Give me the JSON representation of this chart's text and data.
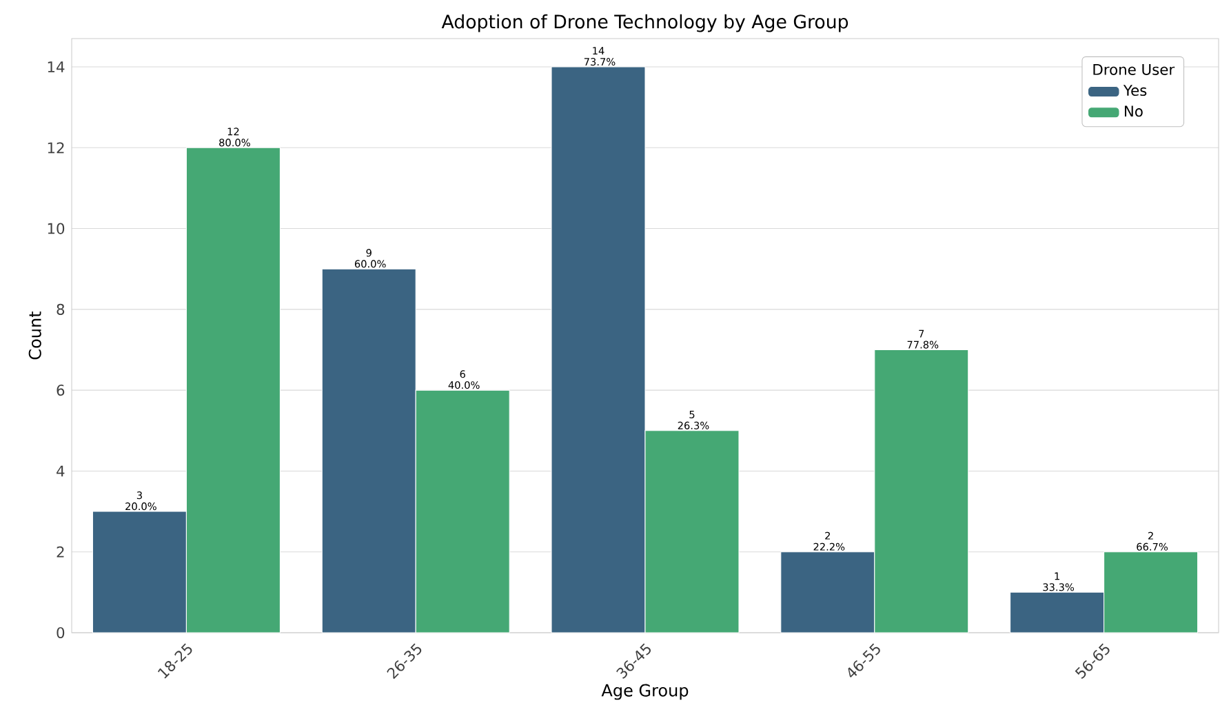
{
  "chart_data": {
    "type": "bar",
    "title": "Adoption of Drone Technology by Age Group",
    "xlabel": "Age Group",
    "ylabel": "Count",
    "legend_title": "Drone User",
    "categories": [
      "18-25",
      "26-35",
      "36-45",
      "46-55",
      "56-65"
    ],
    "series": [
      {
        "name": "Yes",
        "color": "#3b6482",
        "values": [
          3,
          9,
          14,
          2,
          1
        ],
        "value_labels": [
          "3 20.0%",
          "9 60.0%",
          "14 73.7%",
          "2 22.2%",
          "1 33.3%"
        ]
      },
      {
        "name": "No",
        "color": "#45a874",
        "values": [
          12,
          6,
          5,
          7,
          2
        ],
        "value_labels": [
          "12 80.0%",
          "6 40.0%",
          "5 26.3%",
          "7 77.8%",
          "2 66.7%"
        ]
      }
    ],
    "ylim": [
      0,
      14.7
    ],
    "yticks": [
      0,
      2,
      4,
      6,
      8,
      10,
      12,
      14
    ],
    "grid": "y",
    "legend": "top right"
  }
}
